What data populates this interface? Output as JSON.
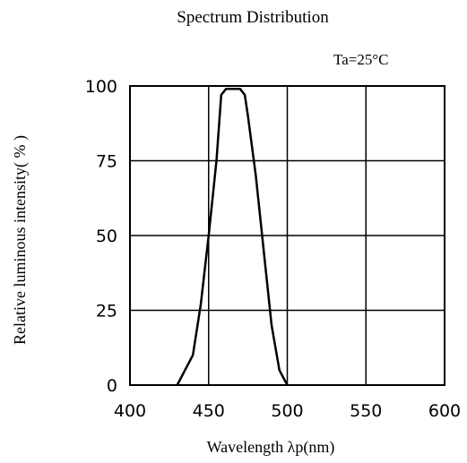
{
  "chart_data": {
    "type": "line",
    "title": "Spectrum Distribution",
    "annotation": "Ta=25°C",
    "xlabel": "Wavelength  λp(nm)",
    "ylabel": "Relative luminous intensity( % )",
    "xlim": [
      400,
      600
    ],
    "ylim": [
      0,
      100
    ],
    "x_ticks": [
      "400",
      "450",
      "500",
      "550",
      "600"
    ],
    "y_ticks": [
      "0",
      "25",
      "50",
      "75",
      "100"
    ],
    "grid": true,
    "series": [
      {
        "x": [
          430,
          435,
          440,
          445,
          450,
          455,
          458,
          461,
          465,
          470,
          473,
          475,
          480,
          485,
          490,
          495,
          500
        ],
        "y": [
          0,
          5,
          10,
          27,
          50,
          75,
          97,
          99,
          99,
          99,
          97,
          90,
          70,
          45,
          20,
          5,
          0
        ],
        "color": "#000000"
      }
    ]
  }
}
